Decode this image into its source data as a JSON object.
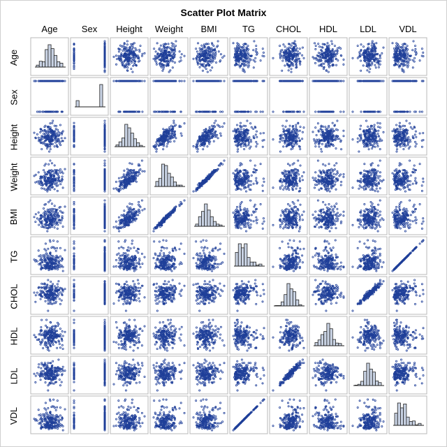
{
  "chart_data": {
    "type": "scatter_matrix",
    "title": "Scatter Plot Matrix",
    "variables": [
      "Age",
      "Sex",
      "Height",
      "Weight",
      "BMI",
      "TG",
      "CHOL",
      "HDL",
      "LDL",
      "VDL"
    ],
    "diagonal": "histogram",
    "off_diagonal": "scatter",
    "marker_color": "#1f3f99",
    "histogram_fill": "#c8d2e3",
    "sex_histogram_bars": [
      0.28,
      0.0,
      0.0,
      0.0,
      0.0,
      0.0,
      0.0,
      0.0,
      1.0
    ],
    "sample_points": 190,
    "notable_relationships": [
      {
        "x": "Weight",
        "y": "BMI",
        "pattern": "strong positive"
      },
      {
        "x": "TG",
        "y": "VDL",
        "pattern": "perfect linear"
      },
      {
        "x": "CHOL",
        "y": "LDL",
        "pattern": "strong positive"
      },
      {
        "x": "Height",
        "y": "Weight",
        "pattern": "moderate positive"
      }
    ],
    "grid": false,
    "legend": "none"
  }
}
